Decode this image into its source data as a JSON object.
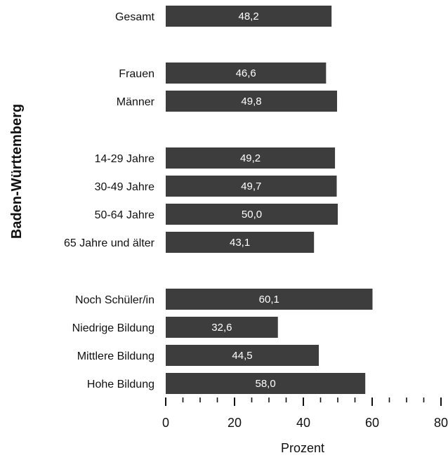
{
  "chart_data": {
    "type": "bar",
    "orientation": "horizontal",
    "group_label": "Baden-Württemberg",
    "xlabel": "Prozent",
    "ylabel": "",
    "xlim": [
      0,
      80
    ],
    "x_ticks": [
      0,
      20,
      40,
      60,
      80
    ],
    "minor_tick_step": 5,
    "bar_color": "#3d3d3d",
    "value_label_color": "#ffffff",
    "decimal_separator": ",",
    "categories": [
      "Gesamt",
      "Frauen",
      "Männer",
      "14-29 Jahre",
      "30-49 Jahre",
      "50-64 Jahre",
      "65 Jahre und älter",
      "Noch Schüler/in",
      "Niedrige Bildung",
      "Mittlere Bildung",
      "Hohe Bildung"
    ],
    "values": [
      48.2,
      46.6,
      49.8,
      49.2,
      49.7,
      50.0,
      43.1,
      60.1,
      32.6,
      44.5,
      58.0
    ],
    "value_labels": [
      "48,2",
      "46,6",
      "49,8",
      "49,2",
      "49,7",
      "50,0",
      "43,1",
      "60,1",
      "32,6",
      "44,5",
      "58,0"
    ],
    "groups": [
      {
        "categories": [
          "Gesamt"
        ]
      },
      {
        "categories": [
          "Frauen",
          "Männer"
        ]
      },
      {
        "categories": [
          "14-29 Jahre",
          "30-49 Jahre",
          "50-64 Jahre",
          "65 Jahre und älter"
        ]
      },
      {
        "categories": [
          "Noch Schüler/in",
          "Niedrige Bildung",
          "Mittlere Bildung",
          "Hohe Bildung"
        ]
      }
    ],
    "grid": false,
    "legend": "none"
  }
}
